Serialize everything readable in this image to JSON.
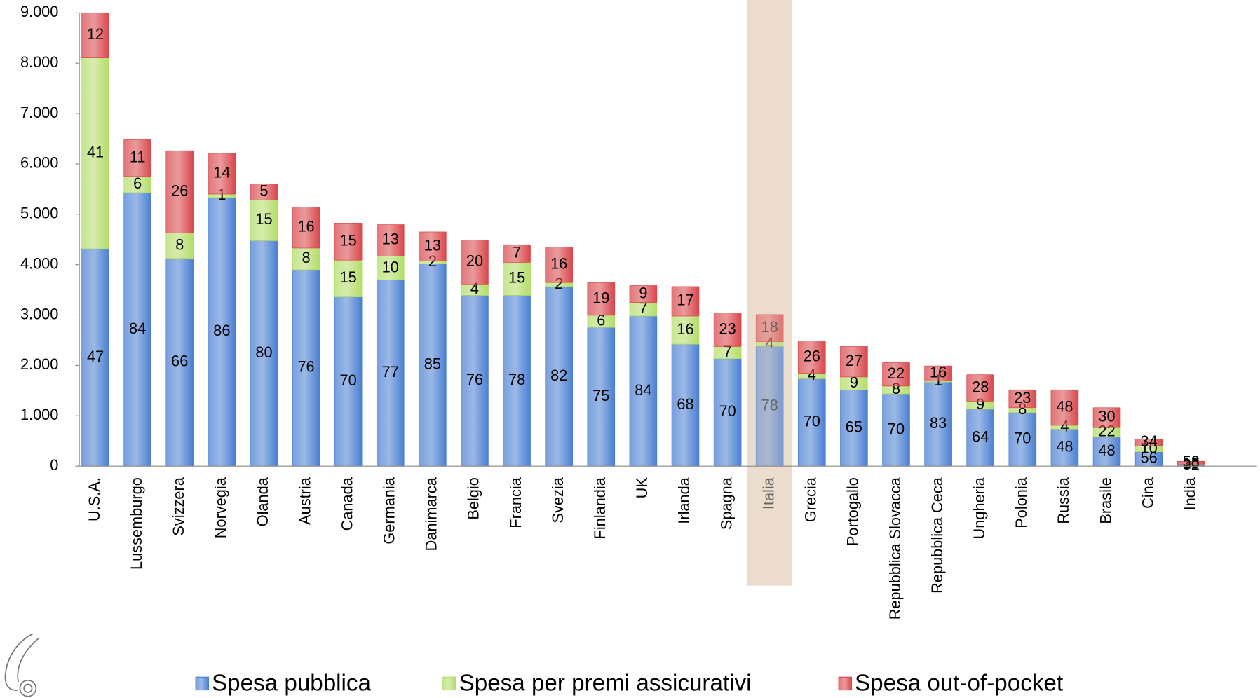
{
  "chart_data": {
    "type": "stacked_bar",
    "categories": [
      "U.S.A.",
      "Lussemburgo",
      "Svizzera",
      "Norvegia",
      "Olanda",
      "Austria",
      "Canada",
      "Germania",
      "Danimarca",
      "Belgio",
      "Francia",
      "Svezia",
      "Finlandia",
      "UK",
      "Irlanda",
      "Spagna",
      "Italia",
      "Grecia",
      "Portogallo",
      "Repubblica Slovacca",
      "Repubblica Ceca",
      "Ungheria",
      "Polonia",
      "Russia",
      "Brasile",
      "Cina",
      "India"
    ],
    "series": [
      {
        "name": "Spesa pubblica",
        "color": "#4a7fd2",
        "values": [
          4315,
          5430,
          4125,
          5335,
          4475,
          3900,
          3360,
          3695,
          4015,
          3390,
          3390,
          3565,
          2755,
          2980,
          2420,
          2135,
          2375,
          1735,
          1515,
          1435,
          1670,
          1130,
          1065,
          735,
          575,
          285,
          30
        ],
        "shares": [
          47,
          84,
          66,
          86,
          80,
          76,
          70,
          77,
          85,
          76,
          78,
          82,
          75,
          84,
          68,
          70,
          78,
          70,
          65,
          70,
          83,
          64,
          70,
          48,
          48,
          56,
          32
        ]
      },
      {
        "name": "Spesa per premi assicurativi",
        "color": "#b3dd68",
        "values": [
          3790,
          320,
          505,
          65,
          810,
          430,
          730,
          475,
          60,
          225,
          655,
          80,
          240,
          270,
          560,
          240,
          95,
          110,
          255,
          155,
          20,
          160,
          95,
          75,
          190,
          115,
          10
        ],
        "shares": [
          41,
          6,
          8,
          1,
          15,
          8,
          15,
          10,
          2,
          4,
          15,
          2,
          6,
          7,
          16,
          7,
          4,
          4,
          9,
          8,
          1,
          9,
          8,
          4,
          22,
          10,
          10
        ]
      },
      {
        "name": "Spesa out-of-pocket",
        "color": "#d9474b",
        "values": [
          895,
          730,
          1630,
          810,
          320,
          815,
          735,
          625,
          575,
          875,
          350,
          705,
          650,
          335,
          585,
          665,
          540,
          640,
          605,
          465,
          300,
          525,
          355,
          705,
          395,
          140,
          55
        ],
        "shares": [
          12,
          11,
          26,
          14,
          5,
          16,
          15,
          13,
          13,
          20,
          7,
          16,
          19,
          9,
          17,
          23,
          18,
          26,
          27,
          22,
          16,
          28,
          23,
          48,
          30,
          34,
          58
        ]
      }
    ],
    "ylim": [
      0,
      9000
    ],
    "yticks": [
      0,
      {
        "value": 1000,
        "label": "1.000"
      },
      {
        "value": 2000,
        "label": "2.000"
      },
      {
        "value": 3000,
        "label": "3.000"
      },
      {
        "value": 4000,
        "label": "4.000"
      },
      {
        "value": 5000,
        "label": "5.000"
      },
      {
        "value": 6000,
        "label": "6.000"
      },
      {
        "value": 7000,
        "label": "7.000"
      },
      {
        "value": 8000,
        "label": "8.000"
      },
      {
        "value": 9000,
        "label": "9.000"
      }
    ],
    "highlight": "Italia",
    "grid": false
  }
}
